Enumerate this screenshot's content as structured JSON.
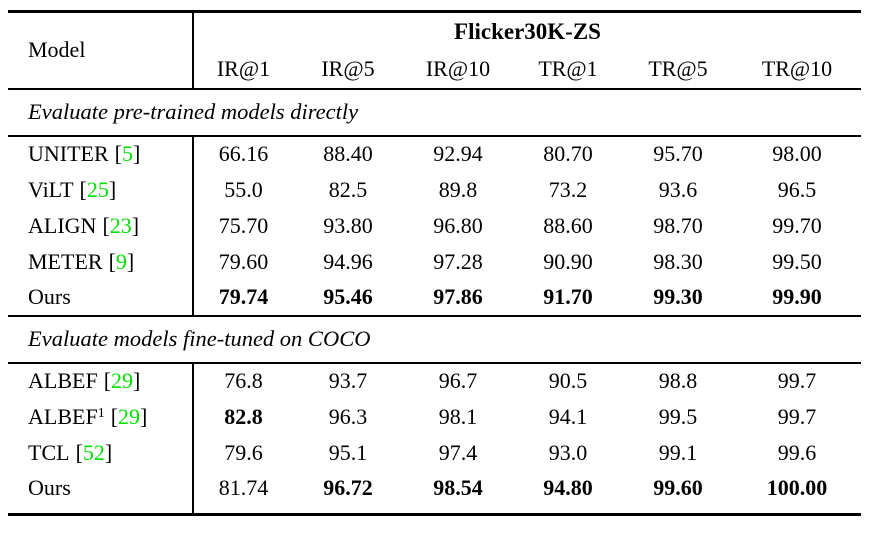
{
  "punct": {
    "open_bracket": "[",
    "close_bracket": "]"
  },
  "colors": {
    "citation_green": "#00E000",
    "text": "#000000",
    "background": "#FFFFFF",
    "rule": "#000000"
  },
  "table": {
    "header": {
      "model_label": "Model",
      "group_label": "Flicker30K-ZS",
      "columns": [
        "IR@1",
        "IR@5",
        "IR@10",
        "TR@1",
        "TR@5",
        "TR@10"
      ]
    },
    "sections": [
      {
        "caption": "Evaluate pre-trained models directly",
        "rows": [
          {
            "model": "UNITER",
            "sup": "",
            "cite": "5",
            "values": [
              "66.16",
              "88.40",
              "92.94",
              "80.70",
              "95.70",
              "98.00"
            ],
            "bold": [
              false,
              false,
              false,
              false,
              false,
              false
            ]
          },
          {
            "model": "ViLT",
            "sup": "",
            "cite": "25",
            "values": [
              "55.0",
              "82.5",
              "89.8",
              "73.2",
              "93.6",
              "96.5"
            ],
            "bold": [
              false,
              false,
              false,
              false,
              false,
              false
            ]
          },
          {
            "model": "ALIGN",
            "sup": "",
            "cite": "23",
            "values": [
              "75.70",
              "93.80",
              "96.80",
              "88.60",
              "98.70",
              "99.70"
            ],
            "bold": [
              false,
              false,
              false,
              false,
              false,
              false
            ]
          },
          {
            "model": "METER",
            "sup": "",
            "cite": "9",
            "values": [
              "79.60",
              "94.96",
              "97.28",
              "90.90",
              "98.30",
              "99.50"
            ],
            "bold": [
              false,
              false,
              false,
              false,
              false,
              false
            ]
          },
          {
            "model": "Ours",
            "sup": "",
            "cite": "",
            "values": [
              "79.74",
              "95.46",
              "97.86",
              "91.70",
              "99.30",
              "99.90"
            ],
            "bold": [
              true,
              true,
              true,
              true,
              true,
              true
            ]
          }
        ]
      },
      {
        "caption": "Evaluate models fine-tuned on COCO",
        "rows": [
          {
            "model": "ALBEF",
            "sup": "",
            "cite": "29",
            "values": [
              "76.8",
              "93.7",
              "96.7",
              "90.5",
              "98.8",
              "99.7"
            ],
            "bold": [
              false,
              false,
              false,
              false,
              false,
              false
            ]
          },
          {
            "model": "ALBEF",
            "sup": "1",
            "cite": "29",
            "values": [
              "82.8",
              "96.3",
              "98.1",
              "94.1",
              "99.5",
              "99.7"
            ],
            "bold": [
              true,
              false,
              false,
              false,
              false,
              false
            ]
          },
          {
            "model": "TCL",
            "sup": "",
            "cite": "52",
            "values": [
              "79.6",
              "95.1",
              "97.4",
              "93.0",
              "99.1",
              "99.6"
            ],
            "bold": [
              false,
              false,
              false,
              false,
              false,
              false
            ]
          },
          {
            "model": "Ours",
            "sup": "",
            "cite": "",
            "values": [
              "81.74",
              "96.72",
              "98.54",
              "94.80",
              "99.60",
              "100.00"
            ],
            "bold": [
              false,
              true,
              true,
              true,
              true,
              true
            ]
          }
        ]
      }
    ]
  }
}
